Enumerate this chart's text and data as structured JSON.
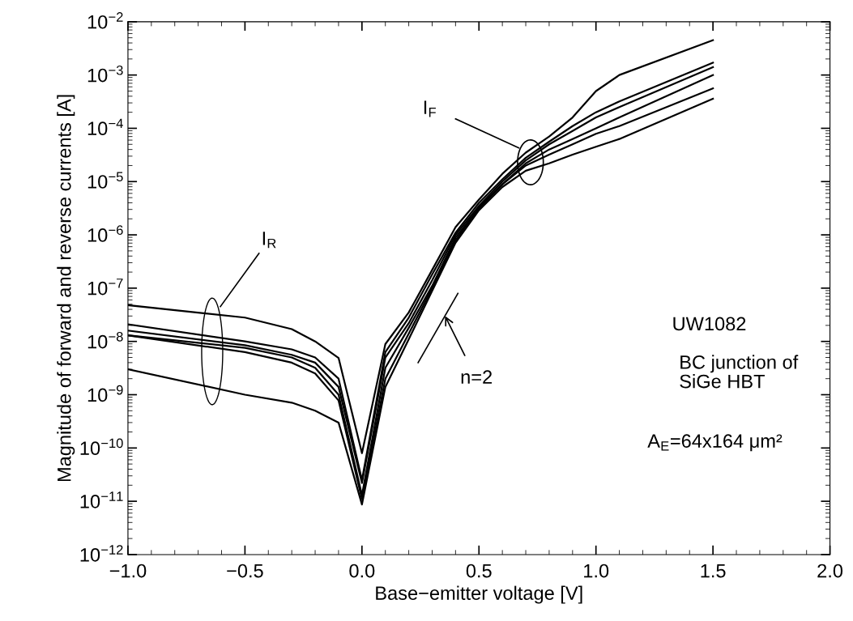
{
  "chart_data": {
    "type": "line",
    "xlabel": "Base−emitter voltage [V]",
    "ylabel": "Magnitude of forward and reverse currents [A]",
    "x": [
      -1.0,
      -0.5,
      -0.3,
      -0.2,
      -0.1,
      0.0,
      0.1,
      0.2,
      0.3,
      0.4,
      0.5,
      0.6,
      0.7,
      0.8,
      0.9,
      1.0,
      1.1,
      1.5
    ],
    "series": [
      {
        "color": "#000000",
        "values": [
          4.8e-08,
          2.8e-08,
          1.7e-08,
          1e-08,
          4.9e-09,
          8e-11,
          8.9e-09,
          3.5e-08,
          2.2e-07,
          1.4e-06,
          4.6e-06,
          1.4e-05,
          3.5e-05,
          7e-05,
          0.00016,
          0.0005,
          0.001,
          0.0045
        ]
      },
      {
        "color": "#000000",
        "values": [
          2.1e-08,
          1e-08,
          7.1e-09,
          5e-09,
          2e-09,
          2.5e-11,
          6.3e-09,
          2.8e-08,
          1.8e-07,
          1.1e-06,
          4e-06,
          1.1e-05,
          2.8e-05,
          5.6e-05,
          0.00011,
          0.0002,
          0.00032,
          0.0017
        ]
      },
      {
        "color": "#000000",
        "values": [
          1.6e-08,
          8.5e-09,
          5.6e-09,
          4e-09,
          1.4e-09,
          2.2e-11,
          5e-09,
          2.2e-08,
          1.4e-07,
          1e-06,
          3.5e-06,
          1e-05,
          2.5e-05,
          5e-05,
          8.9e-05,
          0.00016,
          0.00025,
          0.0014
        ]
      },
      {
        "color": "#000000",
        "values": [
          1.3e-08,
          7.6e-09,
          5e-09,
          3.2e-09,
          1e-09,
          1.3e-11,
          3.2e-09,
          1.8e-08,
          1.1e-07,
          8.9e-07,
          3.2e-06,
          8.9e-06,
          2.2e-05,
          4e-05,
          6.3e-05,
          0.0001,
          0.00016,
          0.001
        ]
      },
      {
        "color": "#000000",
        "values": [
          1.3e-08,
          6.3e-09,
          4e-09,
          2.5e-09,
          7.8e-10,
          1.1e-11,
          2e-09,
          1.4e-08,
          1e-07,
          7.9e-07,
          3.2e-06,
          8.9e-06,
          2e-05,
          3.2e-05,
          5e-05,
          7.9e-05,
          0.00011,
          0.00056
        ]
      },
      {
        "color": "#000000",
        "values": [
          3e-09,
          1e-09,
          7.1e-10,
          5e-10,
          3e-10,
          8.7e-12,
          1.4e-09,
          1.1e-08,
          8.9e-08,
          7.1e-07,
          2.9e-06,
          7.9e-06,
          1.6e-05,
          2.2e-05,
          3.2e-05,
          4.5e-05,
          6.3e-05,
          0.00036
        ]
      }
    ],
    "log": "y",
    "xlim": [
      -1.0,
      2.0
    ],
    "ylim": [
      1e-12,
      0.01
    ],
    "xticks": [
      {
        "value": -1.0,
        "label": "−1.0"
      },
      {
        "value": -0.5,
        "label": "−0.5"
      },
      {
        "value": 0.0,
        "label": "0.0"
      },
      0.5,
      {
        "value": 1.0,
        "label": "1.0"
      },
      1.5,
      {
        "value": 2.0,
        "label": "2.0"
      }
    ],
    "yticks": [
      {
        "value": 1e-12,
        "label": "10$^{−12}$"
      },
      {
        "value": 1e-11,
        "label": "10$^{−11}$"
      },
      {
        "value": 1e-10,
        "label": "10$^{−10}$"
      },
      {
        "value": 1e-09,
        "label": "10$^{−9}$"
      },
      {
        "value": 1e-08,
        "label": "10$^{−8}$"
      },
      {
        "value": 1e-07,
        "label": "10$^{−7}$"
      },
      {
        "value": 1e-06,
        "label": "10$^{−6}$"
      },
      {
        "value": 1e-05,
        "label": "10$^{−5}$"
      },
      {
        "value": 0.0001,
        "label": "10$^{−4}$"
      },
      {
        "value": 0.001,
        "label": "10$^{−3}$"
      },
      {
        "value": 0.01,
        "label": "10$^{−2}$"
      }
    ],
    "annotations": [
      "I$_{F}$",
      "I$_{R}$",
      "n=2",
      "UW1082",
      "BC junction of\nSiGe HBT",
      "A$_{E}$=64x164 μm²"
    ],
    "grid": false,
    "legend": false,
    "marker": "none",
    "line_style": "solid"
  }
}
